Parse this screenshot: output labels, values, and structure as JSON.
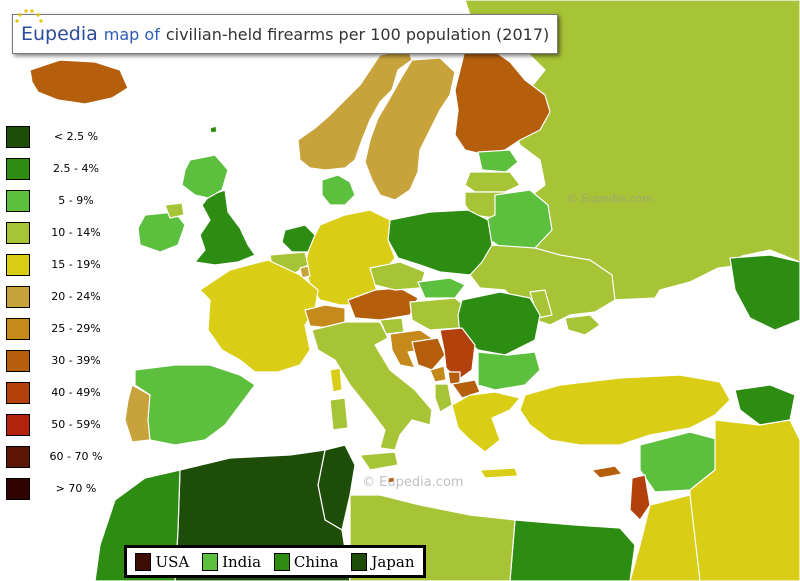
{
  "title": {
    "brand": "Eupedia",
    "map_of": "map of",
    "text": "civilian-held firearms per 100 population (2017)"
  },
  "legend": [
    {
      "label": "< 2.5 %",
      "color": "#1e4d08"
    },
    {
      "label": "2.5 - 4%",
      "color": "#2d8c12"
    },
    {
      "label": "5 - 9%",
      "color": "#5cbf3e"
    },
    {
      "label": "10 - 14%",
      "color": "#a7c336"
    },
    {
      "label": "15 - 19%",
      "color": "#d9cd16"
    },
    {
      "label": "20 - 24%",
      "color": "#c8a33c"
    },
    {
      "label": "25 - 29%",
      "color": "#c6891b"
    },
    {
      "label": "30 - 39%",
      "color": "#b55e0c"
    },
    {
      "label": "40 - 49%",
      "color": "#b3410c"
    },
    {
      "label": "50 - 59%",
      "color": "#b3230c"
    },
    {
      "label": "60 - 70 %",
      "color": "#5c1405"
    },
    {
      "label": "> 70 %",
      "color": "#300500"
    }
  ],
  "comparison": [
    {
      "label": "USA",
      "color": "#3d0c03"
    },
    {
      "label": "India",
      "color": "#5cbf3e"
    },
    {
      "label": "China",
      "color": "#2d8c12"
    },
    {
      "label": "Japan",
      "color": "#1e4d08"
    }
  ],
  "watermarks": {
    "small": "© Eupedia.com",
    "large": "© Eupedia.com"
  }
}
